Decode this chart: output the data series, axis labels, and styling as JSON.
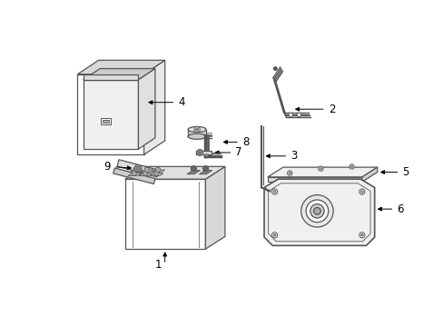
{
  "background_color": "#ffffff",
  "line_color": "#555555",
  "label_color": "#000000",
  "figsize": [
    4.89,
    3.6
  ],
  "dpi": 100,
  "xlim": [
    0,
    489
  ],
  "ylim": [
    0,
    360
  ]
}
